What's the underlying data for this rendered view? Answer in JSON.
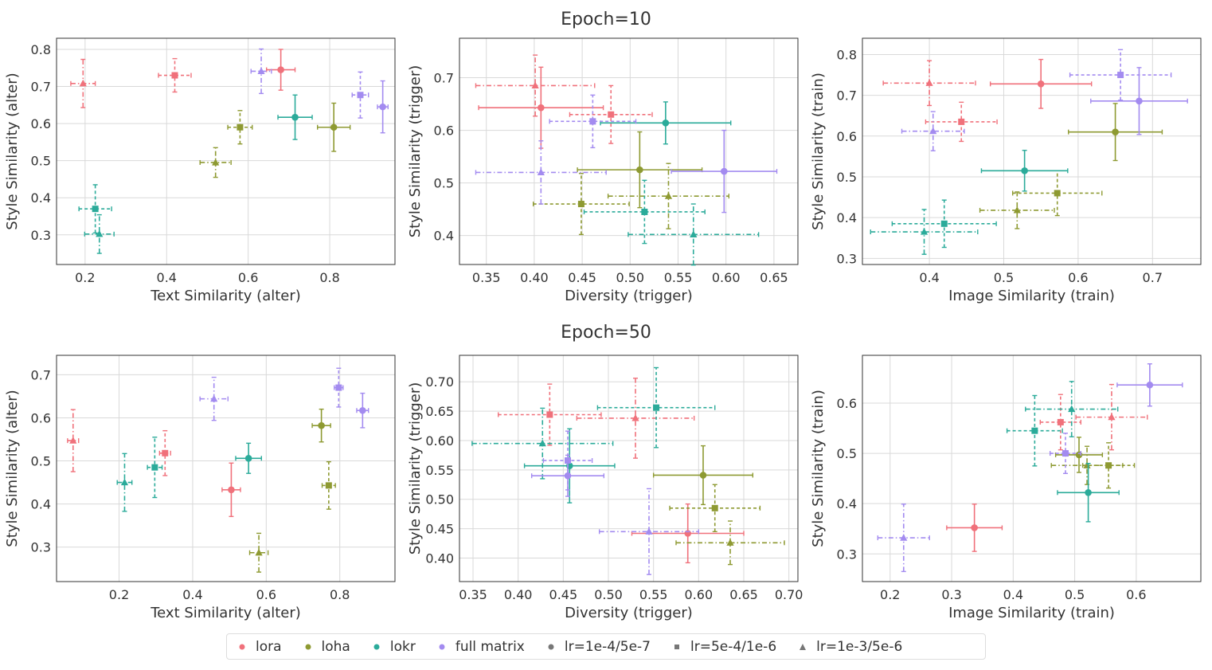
{
  "figure": {
    "titles": [
      "Epoch=10",
      "Epoch=50"
    ]
  },
  "legend": {
    "items": [
      {
        "label": "lora",
        "marker": "circle",
        "color": "#f0717b"
      },
      {
        "label": "loha",
        "marker": "circle",
        "color": "#8e9a32"
      },
      {
        "label": "lokr",
        "marker": "circle",
        "color": "#2bab9a"
      },
      {
        "label": "full matrix",
        "marker": "circle",
        "color": "#a38bf0"
      },
      {
        "label": "lr=1e-4/5e-7",
        "marker": "circle",
        "color": "#777777"
      },
      {
        "label": "lr=5e-4/1e-6",
        "marker": "square",
        "color": "#777777"
      },
      {
        "label": "lr=1e-3/5e-6",
        "marker": "triangle",
        "color": "#777777"
      }
    ]
  },
  "chart_data": [
    {
      "type": "scatter",
      "epoch": "Epoch=10",
      "xlabel": "Text Similarity (alter)",
      "ylabel": "Style Similarity (alter)",
      "xlim": [
        0.13,
        0.96
      ],
      "ylim": [
        0.22,
        0.83
      ],
      "xticks": [
        0.2,
        0.4,
        0.6,
        0.8
      ],
      "xtick_labels": [
        "0.2",
        "0.4",
        "0.6",
        "0.8"
      ],
      "yticks": [
        0.3,
        0.4,
        0.5,
        0.6,
        0.7,
        0.8
      ],
      "ytick_labels": [
        "0.3",
        "0.4",
        "0.5",
        "0.6",
        "0.7",
        "0.8"
      ],
      "points": [
        {
          "method": "lora",
          "lr": "lr=1e-4/5e-7",
          "x": 0.68,
          "y": 0.745,
          "xerr": 0.035,
          "yerr": 0.055
        },
        {
          "method": "lora",
          "lr": "lr=5e-4/1e-6",
          "x": 0.42,
          "y": 0.73,
          "xerr": 0.04,
          "yerr": 0.045
        },
        {
          "method": "lora",
          "lr": "lr=1e-3/5e-6",
          "x": 0.195,
          "y": 0.708,
          "xerr": 0.03,
          "yerr": 0.065
        },
        {
          "method": "loha",
          "lr": "lr=1e-4/5e-7",
          "x": 0.81,
          "y": 0.59,
          "xerr": 0.04,
          "yerr": 0.065
        },
        {
          "method": "loha",
          "lr": "lr=5e-4/1e-6",
          "x": 0.58,
          "y": 0.59,
          "xerr": 0.03,
          "yerr": 0.045
        },
        {
          "method": "loha",
          "lr": "lr=1e-3/5e-6",
          "x": 0.52,
          "y": 0.495,
          "xerr": 0.038,
          "yerr": 0.04
        },
        {
          "method": "lokr",
          "lr": "lr=1e-4/5e-7",
          "x": 0.715,
          "y": 0.617,
          "xerr": 0.042,
          "yerr": 0.06
        },
        {
          "method": "lokr",
          "lr": "lr=5e-4/1e-6",
          "x": 0.225,
          "y": 0.37,
          "xerr": 0.04,
          "yerr": 0.065
        },
        {
          "method": "lokr",
          "lr": "lr=1e-3/5e-6",
          "x": 0.235,
          "y": 0.302,
          "xerr": 0.036,
          "yerr": 0.052
        },
        {
          "method": "full matrix",
          "lr": "lr=1e-4/5e-7",
          "x": 0.93,
          "y": 0.645,
          "xerr": 0.013,
          "yerr": 0.07
        },
        {
          "method": "full matrix",
          "lr": "lr=5e-4/1e-6",
          "x": 0.875,
          "y": 0.677,
          "xerr": 0.02,
          "yerr": 0.062
        },
        {
          "method": "full matrix",
          "lr": "lr=1e-3/5e-6",
          "x": 0.632,
          "y": 0.741,
          "xerr": 0.025,
          "yerr": 0.06
        }
      ]
    },
    {
      "type": "scatter",
      "epoch": "Epoch=10",
      "xlabel": "Diversity (trigger)",
      "ylabel": "Style Similarity (trigger)",
      "xlim": [
        0.322,
        0.675
      ],
      "ylim": [
        0.345,
        0.775
      ],
      "xticks": [
        0.35,
        0.4,
        0.45,
        0.5,
        0.55,
        0.6,
        0.65
      ],
      "xtick_labels": [
        "0.35",
        "0.40",
        "0.45",
        "0.50",
        "0.55",
        "0.60",
        "0.65"
      ],
      "yticks": [
        0.4,
        0.5,
        0.6,
        0.7
      ],
      "ytick_labels": [
        "0.4",
        "0.5",
        "0.6",
        "0.7"
      ],
      "points": [
        {
          "method": "lora",
          "lr": "lr=1e-4/5e-7",
          "x": 0.407,
          "y": 0.643,
          "xerr": 0.065,
          "yerr": 0.077
        },
        {
          "method": "lora",
          "lr": "lr=5e-4/1e-6",
          "x": 0.48,
          "y": 0.63,
          "xerr": 0.043,
          "yerr": 0.055
        },
        {
          "method": "lora",
          "lr": "lr=1e-3/5e-6",
          "x": 0.401,
          "y": 0.685,
          "xerr": 0.062,
          "yerr": 0.058
        },
        {
          "method": "loha",
          "lr": "lr=1e-4/5e-7",
          "x": 0.51,
          "y": 0.525,
          "xerr": 0.065,
          "yerr": 0.072
        },
        {
          "method": "loha",
          "lr": "lr=5e-4/1e-6",
          "x": 0.449,
          "y": 0.46,
          "xerr": 0.05,
          "yerr": 0.058
        },
        {
          "method": "loha",
          "lr": "lr=1e-3/5e-6",
          "x": 0.54,
          "y": 0.475,
          "xerr": 0.063,
          "yerr": 0.062
        },
        {
          "method": "lokr",
          "lr": "lr=1e-4/5e-7",
          "x": 0.537,
          "y": 0.614,
          "xerr": 0.068,
          "yerr": 0.04
        },
        {
          "method": "lokr",
          "lr": "lr=5e-4/1e-6",
          "x": 0.515,
          "y": 0.445,
          "xerr": 0.063,
          "yerr": 0.06
        },
        {
          "method": "lokr",
          "lr": "lr=1e-3/5e-6",
          "x": 0.566,
          "y": 0.402,
          "xerr": 0.068,
          "yerr": 0.058
        },
        {
          "method": "full matrix",
          "lr": "lr=1e-4/5e-7",
          "x": 0.598,
          "y": 0.522,
          "xerr": 0.055,
          "yerr": 0.078
        },
        {
          "method": "full matrix",
          "lr": "lr=5e-4/1e-6",
          "x": 0.461,
          "y": 0.617,
          "xerr": 0.045,
          "yerr": 0.05
        },
        {
          "method": "full matrix",
          "lr": "lr=1e-3/5e-6",
          "x": 0.407,
          "y": 0.52,
          "xerr": 0.068,
          "yerr": 0.06
        }
      ]
    },
    {
      "type": "scatter",
      "epoch": "Epoch=10",
      "xlabel": "Image Similarity (train)",
      "ylabel": "Style Similarity (train)",
      "xlim": [
        0.31,
        0.765
      ],
      "ylim": [
        0.285,
        0.84
      ],
      "xticks": [
        0.4,
        0.5,
        0.6,
        0.7
      ],
      "xtick_labels": [
        "0.4",
        "0.5",
        "0.6",
        "0.7"
      ],
      "yticks": [
        0.3,
        0.4,
        0.5,
        0.6,
        0.7,
        0.8
      ],
      "ytick_labels": [
        "0.3",
        "0.4",
        "0.5",
        "0.6",
        "0.7",
        "0.8"
      ],
      "points": [
        {
          "method": "lora",
          "lr": "lr=1e-4/5e-7",
          "x": 0.55,
          "y": 0.728,
          "xerr": 0.068,
          "yerr": 0.06
        },
        {
          "method": "lora",
          "lr": "lr=5e-4/1e-6",
          "x": 0.443,
          "y": 0.635,
          "xerr": 0.048,
          "yerr": 0.048
        },
        {
          "method": "lora",
          "lr": "lr=1e-3/5e-6",
          "x": 0.4,
          "y": 0.73,
          "xerr": 0.062,
          "yerr": 0.055
        },
        {
          "method": "loha",
          "lr": "lr=1e-4/5e-7",
          "x": 0.65,
          "y": 0.61,
          "xerr": 0.063,
          "yerr": 0.07
        },
        {
          "method": "loha",
          "lr": "lr=5e-4/1e-6",
          "x": 0.572,
          "y": 0.46,
          "xerr": 0.06,
          "yerr": 0.055
        },
        {
          "method": "loha",
          "lr": "lr=1e-3/5e-6",
          "x": 0.518,
          "y": 0.418,
          "xerr": 0.05,
          "yerr": 0.045
        },
        {
          "method": "lokr",
          "lr": "lr=1e-4/5e-7",
          "x": 0.528,
          "y": 0.515,
          "xerr": 0.058,
          "yerr": 0.05
        },
        {
          "method": "lokr",
          "lr": "lr=5e-4/1e-6",
          "x": 0.42,
          "y": 0.385,
          "xerr": 0.07,
          "yerr": 0.058
        },
        {
          "method": "lokr",
          "lr": "lr=1e-3/5e-6",
          "x": 0.393,
          "y": 0.365,
          "xerr": 0.072,
          "yerr": 0.055
        },
        {
          "method": "full matrix",
          "lr": "lr=1e-4/5e-7",
          "x": 0.682,
          "y": 0.686,
          "xerr": 0.065,
          "yerr": 0.082
        },
        {
          "method": "full matrix",
          "lr": "lr=5e-4/1e-6",
          "x": 0.657,
          "y": 0.75,
          "xerr": 0.068,
          "yerr": 0.062
        },
        {
          "method": "full matrix",
          "lr": "lr=1e-3/5e-6",
          "x": 0.405,
          "y": 0.612,
          "xerr": 0.042,
          "yerr": 0.048
        }
      ]
    },
    {
      "type": "scatter",
      "epoch": "Epoch=50",
      "xlabel": "Text Similarity (alter)",
      "ylabel": "Style Similarity (alter)",
      "xlim": [
        0.03,
        0.95
      ],
      "ylim": [
        0.22,
        0.745
      ],
      "xticks": [
        0.2,
        0.4,
        0.6,
        0.8
      ],
      "xtick_labels": [
        "0.2",
        "0.4",
        "0.6",
        "0.8"
      ],
      "yticks": [
        0.3,
        0.4,
        0.5,
        0.6,
        0.7
      ],
      "ytick_labels": [
        "0.3",
        "0.4",
        "0.5",
        "0.6",
        "0.7"
      ],
      "points": [
        {
          "method": "lora",
          "lr": "lr=1e-4/5e-7",
          "x": 0.505,
          "y": 0.433,
          "xerr": 0.025,
          "yerr": 0.062
        },
        {
          "method": "lora",
          "lr": "lr=5e-4/1e-6",
          "x": 0.325,
          "y": 0.518,
          "xerr": 0.015,
          "yerr": 0.052
        },
        {
          "method": "lora",
          "lr": "lr=1e-3/5e-6",
          "x": 0.075,
          "y": 0.547,
          "xerr": 0.015,
          "yerr": 0.072
        },
        {
          "method": "loha",
          "lr": "lr=1e-4/5e-7",
          "x": 0.75,
          "y": 0.582,
          "xerr": 0.025,
          "yerr": 0.038
        },
        {
          "method": "loha",
          "lr": "lr=5e-4/1e-6",
          "x": 0.77,
          "y": 0.443,
          "xerr": 0.018,
          "yerr": 0.055
        },
        {
          "method": "loha",
          "lr": "lr=1e-3/5e-6",
          "x": 0.58,
          "y": 0.287,
          "xerr": 0.025,
          "yerr": 0.045
        },
        {
          "method": "lokr",
          "lr": "lr=1e-4/5e-7",
          "x": 0.552,
          "y": 0.506,
          "xerr": 0.035,
          "yerr": 0.035
        },
        {
          "method": "lokr",
          "lr": "lr=5e-4/1e-6",
          "x": 0.297,
          "y": 0.485,
          "xerr": 0.02,
          "yerr": 0.07
        },
        {
          "method": "lokr",
          "lr": "lr=1e-3/5e-6",
          "x": 0.215,
          "y": 0.45,
          "xerr": 0.02,
          "yerr": 0.067
        },
        {
          "method": "full matrix",
          "lr": "lr=1e-4/5e-7",
          "x": 0.862,
          "y": 0.617,
          "xerr": 0.016,
          "yerr": 0.04
        },
        {
          "method": "full matrix",
          "lr": "lr=5e-4/1e-6",
          "x": 0.797,
          "y": 0.67,
          "xerr": 0.012,
          "yerr": 0.045
        },
        {
          "method": "full matrix",
          "lr": "lr=1e-3/5e-6",
          "x": 0.458,
          "y": 0.644,
          "xerr": 0.038,
          "yerr": 0.05
        }
      ]
    },
    {
      "type": "scatter",
      "epoch": "Epoch=50",
      "xlabel": "Diversity (trigger)",
      "ylabel": "Style Similarity (trigger)",
      "xlim": [
        0.335,
        0.71
      ],
      "ylim": [
        0.36,
        0.745
      ],
      "xticks": [
        0.35,
        0.4,
        0.45,
        0.5,
        0.55,
        0.6,
        0.65,
        0.7
      ],
      "xtick_labels": [
        "0.35",
        "0.40",
        "0.45",
        "0.50",
        "0.55",
        "0.60",
        "0.65",
        "0.70"
      ],
      "yticks": [
        0.4,
        0.45,
        0.5,
        0.55,
        0.6,
        0.65,
        0.7
      ],
      "ytick_labels": [
        "0.40",
        "0.45",
        "0.50",
        "0.55",
        "0.60",
        "0.65",
        "0.70"
      ],
      "points": [
        {
          "method": "lora",
          "lr": "lr=1e-4/5e-7",
          "x": 0.588,
          "y": 0.442,
          "xerr": 0.062,
          "yerr": 0.05
        },
        {
          "method": "lora",
          "lr": "lr=5e-4/1e-6",
          "x": 0.435,
          "y": 0.644,
          "xerr": 0.057,
          "yerr": 0.052
        },
        {
          "method": "lora",
          "lr": "lr=1e-3/5e-6",
          "x": 0.53,
          "y": 0.638,
          "xerr": 0.065,
          "yerr": 0.068
        },
        {
          "method": "loha",
          "lr": "lr=1e-4/5e-7",
          "x": 0.605,
          "y": 0.541,
          "xerr": 0.055,
          "yerr": 0.05
        },
        {
          "method": "loha",
          "lr": "lr=5e-4/1e-6",
          "x": 0.618,
          "y": 0.485,
          "xerr": 0.05,
          "yerr": 0.04
        },
        {
          "method": "loha",
          "lr": "lr=1e-3/5e-6",
          "x": 0.635,
          "y": 0.426,
          "xerr": 0.06,
          "yerr": 0.037
        },
        {
          "method": "lokr",
          "lr": "lr=1e-4/5e-7",
          "x": 0.457,
          "y": 0.557,
          "xerr": 0.05,
          "yerr": 0.063
        },
        {
          "method": "lokr",
          "lr": "lr=5e-4/1e-6",
          "x": 0.553,
          "y": 0.656,
          "xerr": 0.065,
          "yerr": 0.068
        },
        {
          "method": "lokr",
          "lr": "lr=1e-3/5e-6",
          "x": 0.427,
          "y": 0.595,
          "xerr": 0.078,
          "yerr": 0.06
        },
        {
          "method": "full matrix",
          "lr": "lr=1e-4/5e-7",
          "x": 0.455,
          "y": 0.54,
          "xerr": 0.04,
          "yerr": 0.035
        },
        {
          "method": "full matrix",
          "lr": "lr=5e-4/1e-6",
          "x": 0.455,
          "y": 0.566,
          "xerr": 0.027,
          "yerr": 0.05
        },
        {
          "method": "full matrix",
          "lr": "lr=1e-3/5e-6",
          "x": 0.545,
          "y": 0.445,
          "xerr": 0.055,
          "yerr": 0.073
        }
      ]
    },
    {
      "type": "scatter",
      "epoch": "Epoch=50",
      "xlabel": "Image Similarity (train)",
      "ylabel": "Style Similarity (train)",
      "xlim": [
        0.155,
        0.705
      ],
      "ylim": [
        0.245,
        0.695
      ],
      "xticks": [
        0.2,
        0.3,
        0.4,
        0.5,
        0.6
      ],
      "xtick_labels": [
        "0.2",
        "0.3",
        "0.4",
        "0.5",
        "0.6"
      ],
      "yticks": [
        0.3,
        0.4,
        0.5,
        0.6
      ],
      "ytick_labels": [
        "0.3",
        "0.4",
        "0.5",
        "0.6"
      ],
      "points": [
        {
          "method": "lora",
          "lr": "lr=1e-4/5e-7",
          "x": 0.337,
          "y": 0.352,
          "xerr": 0.045,
          "yerr": 0.047
        },
        {
          "method": "lora",
          "lr": "lr=5e-4/1e-6",
          "x": 0.477,
          "y": 0.562,
          "xerr": 0.033,
          "yerr": 0.055
        },
        {
          "method": "lora",
          "lr": "lr=1e-3/5e-6",
          "x": 0.56,
          "y": 0.572,
          "xerr": 0.058,
          "yerr": 0.065
        },
        {
          "method": "loha",
          "lr": "lr=1e-4/5e-7",
          "x": 0.507,
          "y": 0.497,
          "xerr": 0.038,
          "yerr": 0.035
        },
        {
          "method": "loha",
          "lr": "lr=5e-4/1e-6",
          "x": 0.555,
          "y": 0.476,
          "xerr": 0.042,
          "yerr": 0.045
        },
        {
          "method": "loha",
          "lr": "lr=1e-3/5e-6",
          "x": 0.52,
          "y": 0.476,
          "xerr": 0.058,
          "yerr": 0.038
        },
        {
          "method": "lokr",
          "lr": "lr=1e-4/5e-7",
          "x": 0.522,
          "y": 0.422,
          "xerr": 0.05,
          "yerr": 0.058
        },
        {
          "method": "lokr",
          "lr": "lr=5e-4/1e-6",
          "x": 0.435,
          "y": 0.545,
          "xerr": 0.045,
          "yerr": 0.07
        },
        {
          "method": "lokr",
          "lr": "lr=1e-3/5e-6",
          "x": 0.495,
          "y": 0.588,
          "xerr": 0.075,
          "yerr": 0.055
        },
        {
          "method": "full matrix",
          "lr": "lr=1e-4/5e-7",
          "x": 0.622,
          "y": 0.636,
          "xerr": 0.053,
          "yerr": 0.042
        },
        {
          "method": "full matrix",
          "lr": "lr=5e-4/1e-6",
          "x": 0.485,
          "y": 0.5,
          "xerr": 0.025,
          "yerr": 0.04
        },
        {
          "method": "full matrix",
          "lr": "lr=1e-3/5e-6",
          "x": 0.222,
          "y": 0.332,
          "xerr": 0.042,
          "yerr": 0.067
        }
      ]
    }
  ]
}
